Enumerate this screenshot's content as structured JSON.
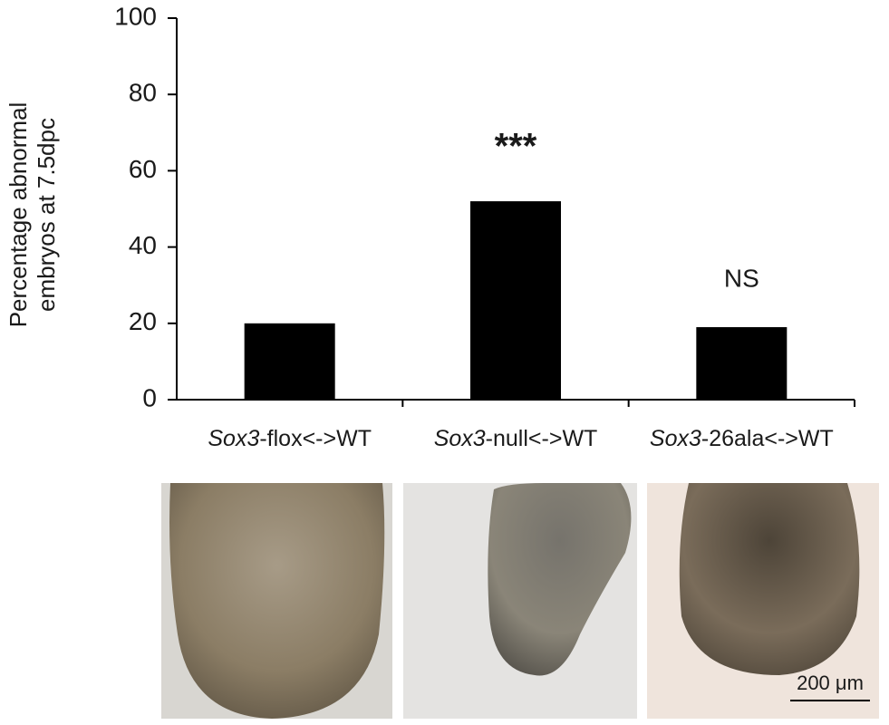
{
  "chart_data": {
    "type": "bar",
    "y_label": [
      "Percentage abnormal",
      "embryos at 7.5dpc"
    ],
    "categories": [
      "Sox3-flox<->WT",
      "Sox3-null<->WT",
      "Sox3-26ala<->WT"
    ],
    "values": [
      20,
      52,
      19
    ],
    "annotations": [
      null,
      "***",
      "NS"
    ],
    "color": "#000000",
    "ylim": [
      0,
      100
    ],
    "yticks": [
      0,
      20,
      40,
      60,
      80,
      100
    ],
    "grid": false,
    "scale_bar": "200 μm"
  }
}
